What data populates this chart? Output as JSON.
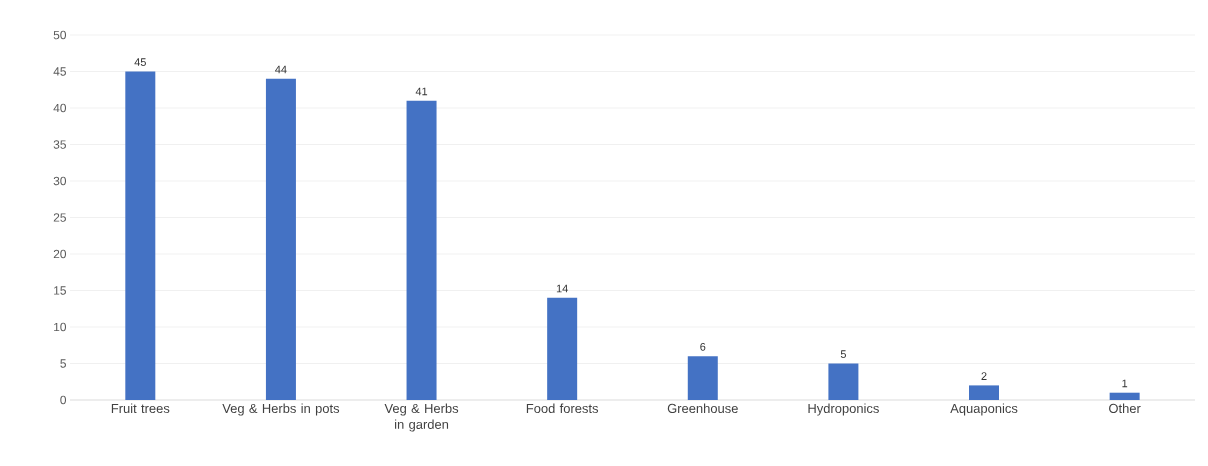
{
  "chart_data": {
    "type": "bar",
    "categories": [
      "Fruit trees",
      "Veg & Herbs in pots",
      "Veg & Herbs in garden",
      "Food forests",
      "Greenhouse",
      "Hydroponics",
      "Aquaponics",
      "Other"
    ],
    "values": [
      45,
      44,
      41,
      14,
      6,
      5,
      2,
      1
    ],
    "color": "#4472c4",
    "ylim": [
      0,
      50
    ],
    "yticks": [
      0,
      5,
      10,
      15,
      20,
      25,
      30,
      35,
      40,
      45,
      50
    ],
    "grid": "y",
    "data_labels": true
  }
}
